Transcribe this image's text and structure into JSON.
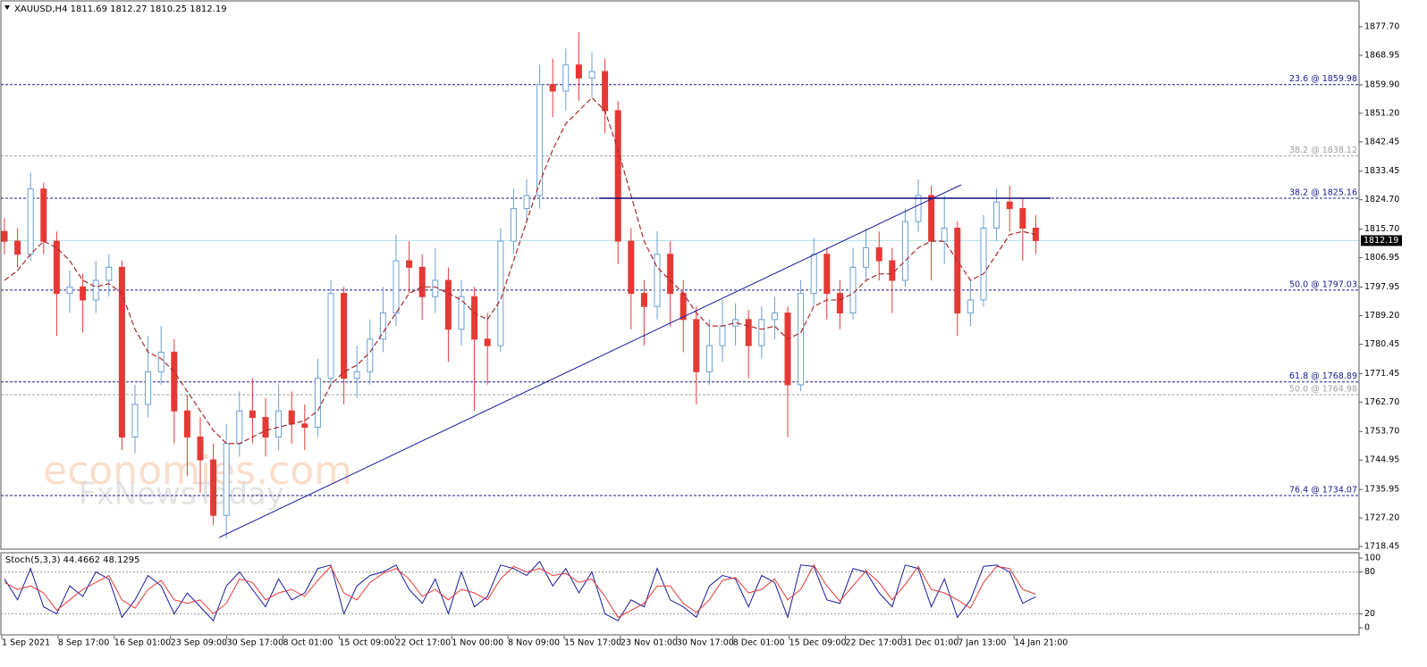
{
  "chart_data": {
    "type": "candlestick",
    "title": "XAUUSD,H4  1811.69 1812.27 1810.25 1812.19",
    "watermark": [
      "economies.com",
      "FxNewsToday"
    ],
    "ylim": [
      1717.65,
      1885.9
    ],
    "yticks": [
      {
        "value": 1877.7,
        "label": "1877.70"
      },
      {
        "value": 1868.95,
        "label": "1868.95"
      },
      {
        "value": 1859.9,
        "label": "1859.90"
      },
      {
        "value": 1851.2,
        "label": "1851.20"
      },
      {
        "value": 1842.45,
        "label": "1842.45"
      },
      {
        "value": 1833.45,
        "label": "1833.45"
      },
      {
        "value": 1824.7,
        "label": "1824.70"
      },
      {
        "value": 1815.7,
        "label": "1815.70"
      },
      {
        "value": 1806.95,
        "label": "1806.95"
      },
      {
        "value": 1797.95,
        "label": "1797.95"
      },
      {
        "value": 1789.2,
        "label": "1789.20"
      },
      {
        "value": 1780.45,
        "label": "1780.45"
      },
      {
        "value": 1771.45,
        "label": "1771.45"
      },
      {
        "value": 1762.7,
        "label": "1762.70"
      },
      {
        "value": 1753.7,
        "label": "1753.70"
      },
      {
        "value": 1744.95,
        "label": "1744.95"
      },
      {
        "value": 1735.95,
        "label": "1735.95"
      },
      {
        "value": 1727.2,
        "label": "1727.20"
      },
      {
        "value": 1718.45,
        "label": "1718.45"
      }
    ],
    "x_labels": [
      "1 Sep 2021",
      "8 Sep 17:00",
      "16 Sep 01:00",
      "23 Sep 09:00",
      "30 Sep 17:00",
      "8 Oct 01:00",
      "15 Oct 09:00",
      "22 Oct 17:00",
      "1 Nov 00:00",
      "8 Nov 09:00",
      "15 Nov 17:00",
      "23 Nov 01:00",
      "30 Nov 17:00",
      "8 Dec 01:00",
      "15 Dec 09:00",
      "22 Dec 17:00",
      "31 Dec 01:00",
      "7 Jan 13:00",
      "14 Jan 21:00"
    ],
    "up_color": "#6a9fd4",
    "down_color": "#e53935",
    "last_price": 1812.19,
    "fib_levels": [
      {
        "value": 1859.98,
        "label": "23.6 @ 1859.98",
        "color": "#1a1a8c"
      },
      {
        "value": 1838.12,
        "label": "38.2 @ 1838.12",
        "color": "#a0a0a0"
      },
      {
        "value": 1825.16,
        "label": "38.2 @ 1825.16",
        "color": "#1a1a8c"
      },
      {
        "value": 1797.03,
        "label": "50.0 @ 1797.03",
        "color": "#1a1a8c"
      },
      {
        "value": 1768.89,
        "label": "61.8 @ 1768.89",
        "color": "#1a1a8c"
      },
      {
        "value": 1764.98,
        "label": "50.0 @ 1764.98",
        "color": "#a0a0a0"
      },
      {
        "value": 1734.07,
        "label": "76.4 @ 1734.07",
        "color": "#1a1a8c"
      }
    ],
    "ohlc": [
      [
        1815,
        1819,
        1808,
        1812
      ],
      [
        1812,
        1816,
        1804,
        1808
      ],
      [
        1808,
        1833,
        1806,
        1828
      ],
      [
        1828,
        1830,
        1808,
        1812
      ],
      [
        1812,
        1815,
        1783,
        1796
      ],
      [
        1796,
        1803,
        1790,
        1798
      ],
      [
        1798,
        1802,
        1784,
        1794
      ],
      [
        1794,
        1806,
        1790,
        1800
      ],
      [
        1800,
        1808,
        1795,
        1804
      ],
      [
        1804,
        1806,
        1748,
        1752
      ],
      [
        1752,
        1768,
        1747,
        1762
      ],
      [
        1762,
        1783,
        1758,
        1772
      ],
      [
        1772,
        1786,
        1768,
        1778
      ],
      [
        1778,
        1782,
        1750,
        1760
      ],
      [
        1760,
        1765,
        1740,
        1752
      ],
      [
        1752,
        1758,
        1735,
        1745
      ],
      [
        1745,
        1750,
        1725,
        1728
      ],
      [
        1728,
        1756,
        1721,
        1750
      ],
      [
        1750,
        1766,
        1746,
        1760
      ],
      [
        1760,
        1770,
        1750,
        1758
      ],
      [
        1758,
        1764,
        1746,
        1752
      ],
      [
        1752,
        1768,
        1748,
        1760
      ],
      [
        1760,
        1766,
        1750,
        1756
      ],
      [
        1756,
        1762,
        1748,
        1755
      ],
      [
        1755,
        1776,
        1752,
        1770
      ],
      [
        1770,
        1800,
        1768,
        1796
      ],
      [
        1796,
        1798,
        1762,
        1770
      ],
      [
        1770,
        1780,
        1764,
        1772
      ],
      [
        1772,
        1788,
        1768,
        1782
      ],
      [
        1782,
        1798,
        1778,
        1790
      ],
      [
        1790,
        1814,
        1786,
        1806
      ],
      [
        1806,
        1812,
        1796,
        1804
      ],
      [
        1804,
        1808,
        1788,
        1795
      ],
      [
        1795,
        1810,
        1790,
        1800
      ],
      [
        1800,
        1804,
        1775,
        1785
      ],
      [
        1785,
        1800,
        1780,
        1795
      ],
      [
        1795,
        1798,
        1760,
        1782
      ],
      [
        1782,
        1790,
        1768,
        1780
      ],
      [
        1780,
        1816,
        1778,
        1812
      ],
      [
        1812,
        1828,
        1808,
        1822
      ],
      [
        1822,
        1831,
        1818,
        1826
      ],
      [
        1826,
        1866,
        1822,
        1860
      ],
      [
        1860,
        1868,
        1850,
        1858
      ],
      [
        1858,
        1871,
        1852,
        1866
      ],
      [
        1866,
        1876,
        1855,
        1862
      ],
      [
        1862,
        1870,
        1856,
        1864
      ],
      [
        1864,
        1868,
        1845,
        1852
      ],
      [
        1852,
        1855,
        1805,
        1812
      ],
      [
        1812,
        1816,
        1785,
        1796
      ],
      [
        1796,
        1800,
        1780,
        1792
      ],
      [
        1792,
        1815,
        1788,
        1808
      ],
      [
        1808,
        1812,
        1786,
        1796
      ],
      [
        1796,
        1800,
        1778,
        1788
      ],
      [
        1788,
        1792,
        1762,
        1772
      ],
      [
        1772,
        1788,
        1768,
        1780
      ],
      [
        1780,
        1794,
        1775,
        1786
      ],
      [
        1786,
        1793,
        1780,
        1788
      ],
      [
        1788,
        1791,
        1770,
        1780
      ],
      [
        1780,
        1792,
        1776,
        1788
      ],
      [
        1788,
        1795,
        1782,
        1790
      ],
      [
        1790,
        1792,
        1752,
        1768
      ],
      [
        1768,
        1800,
        1766,
        1796
      ],
      [
        1796,
        1813,
        1792,
        1808
      ],
      [
        1808,
        1810,
        1788,
        1796
      ],
      [
        1796,
        1800,
        1785,
        1790
      ],
      [
        1790,
        1810,
        1788,
        1804
      ],
      [
        1804,
        1816,
        1800,
        1810
      ],
      [
        1810,
        1815,
        1800,
        1806
      ],
      [
        1806,
        1810,
        1790,
        1800
      ],
      [
        1800,
        1822,
        1798,
        1818
      ],
      [
        1818,
        1831,
        1815,
        1826
      ],
      [
        1826,
        1829,
        1800,
        1812
      ],
      [
        1812,
        1826,
        1805,
        1816
      ],
      [
        1816,
        1818,
        1783,
        1790
      ],
      [
        1790,
        1800,
        1786,
        1794
      ],
      [
        1794,
        1820,
        1792,
        1816
      ],
      [
        1816,
        1828,
        1812,
        1824
      ],
      [
        1824,
        1829,
        1815,
        1822
      ],
      [
        1822,
        1825,
        1806,
        1816
      ],
      [
        1816,
        1820,
        1808,
        1812.19
      ]
    ],
    "ma": {
      "color": "#a52a2a",
      "values": [
        1800,
        1803,
        1808,
        1812,
        1810,
        1806,
        1800,
        1798,
        1799,
        1796,
        1785,
        1778,
        1776,
        1772,
        1766,
        1760,
        1754,
        1750,
        1750,
        1752,
        1754,
        1755,
        1756,
        1757,
        1760,
        1768,
        1772,
        1774,
        1778,
        1784,
        1790,
        1796,
        1798,
        1798,
        1796,
        1794,
        1790,
        1788,
        1794,
        1806,
        1818,
        1830,
        1840,
        1848,
        1852,
        1856,
        1852,
        1840,
        1826,
        1812,
        1804,
        1800,
        1796,
        1790,
        1786,
        1786,
        1787,
        1786,
        1785,
        1786,
        1782,
        1784,
        1792,
        1794,
        1794,
        1796,
        1800,
        1802,
        1802,
        1806,
        1810,
        1812,
        1812,
        1806,
        1800,
        1802,
        1808,
        1814,
        1815,
        1814
      ]
    },
    "stoch": {
      "title": "Stoch(5,3,3) 44.4662 48.1295",
      "ylim": [
        -11.5,
        107.7
      ],
      "yticks": [
        100,
        80,
        20,
        0
      ],
      "levels": [
        80,
        20
      ],
      "series": [
        {
          "color": "#1a1aa0",
          "values": [
            70,
            40,
            85,
            30,
            20,
            60,
            45,
            80,
            70,
            15,
            40,
            75,
            60,
            20,
            50,
            30,
            10,
            60,
            80,
            55,
            30,
            70,
            40,
            50,
            85,
            90,
            20,
            60,
            75,
            80,
            90,
            55,
            35,
            70,
            20,
            80,
            30,
            45,
            90,
            85,
            75,
            95,
            60,
            85,
            50,
            80,
            20,
            10,
            40,
            30,
            85,
            40,
            30,
            15,
            60,
            75,
            70,
            30,
            75,
            65,
            15,
            90,
            88,
            40,
            35,
            85,
            80,
            50,
            30,
            90,
            85,
            30,
            70,
            15,
            40,
            88,
            90,
            80,
            35,
            44.4662
          ]
        },
        {
          "color": "#e53935",
          "values": [
            65,
            55,
            60,
            50,
            25,
            40,
            55,
            65,
            75,
            40,
            28,
            55,
            68,
            40,
            35,
            40,
            20,
            35,
            70,
            65,
            40,
            50,
            55,
            45,
            68,
            88,
            50,
            40,
            65,
            78,
            85,
            70,
            45,
            55,
            40,
            55,
            50,
            40,
            70,
            88,
            80,
            85,
            75,
            78,
            65,
            70,
            45,
            15,
            25,
            35,
            60,
            60,
            35,
            22,
            40,
            68,
            72,
            50,
            55,
            70,
            40,
            55,
            90,
            60,
            38,
            60,
            82,
            65,
            40,
            62,
            88,
            55,
            50,
            40,
            28,
            65,
            88,
            85,
            55,
            48.1295
          ]
        }
      ]
    }
  }
}
